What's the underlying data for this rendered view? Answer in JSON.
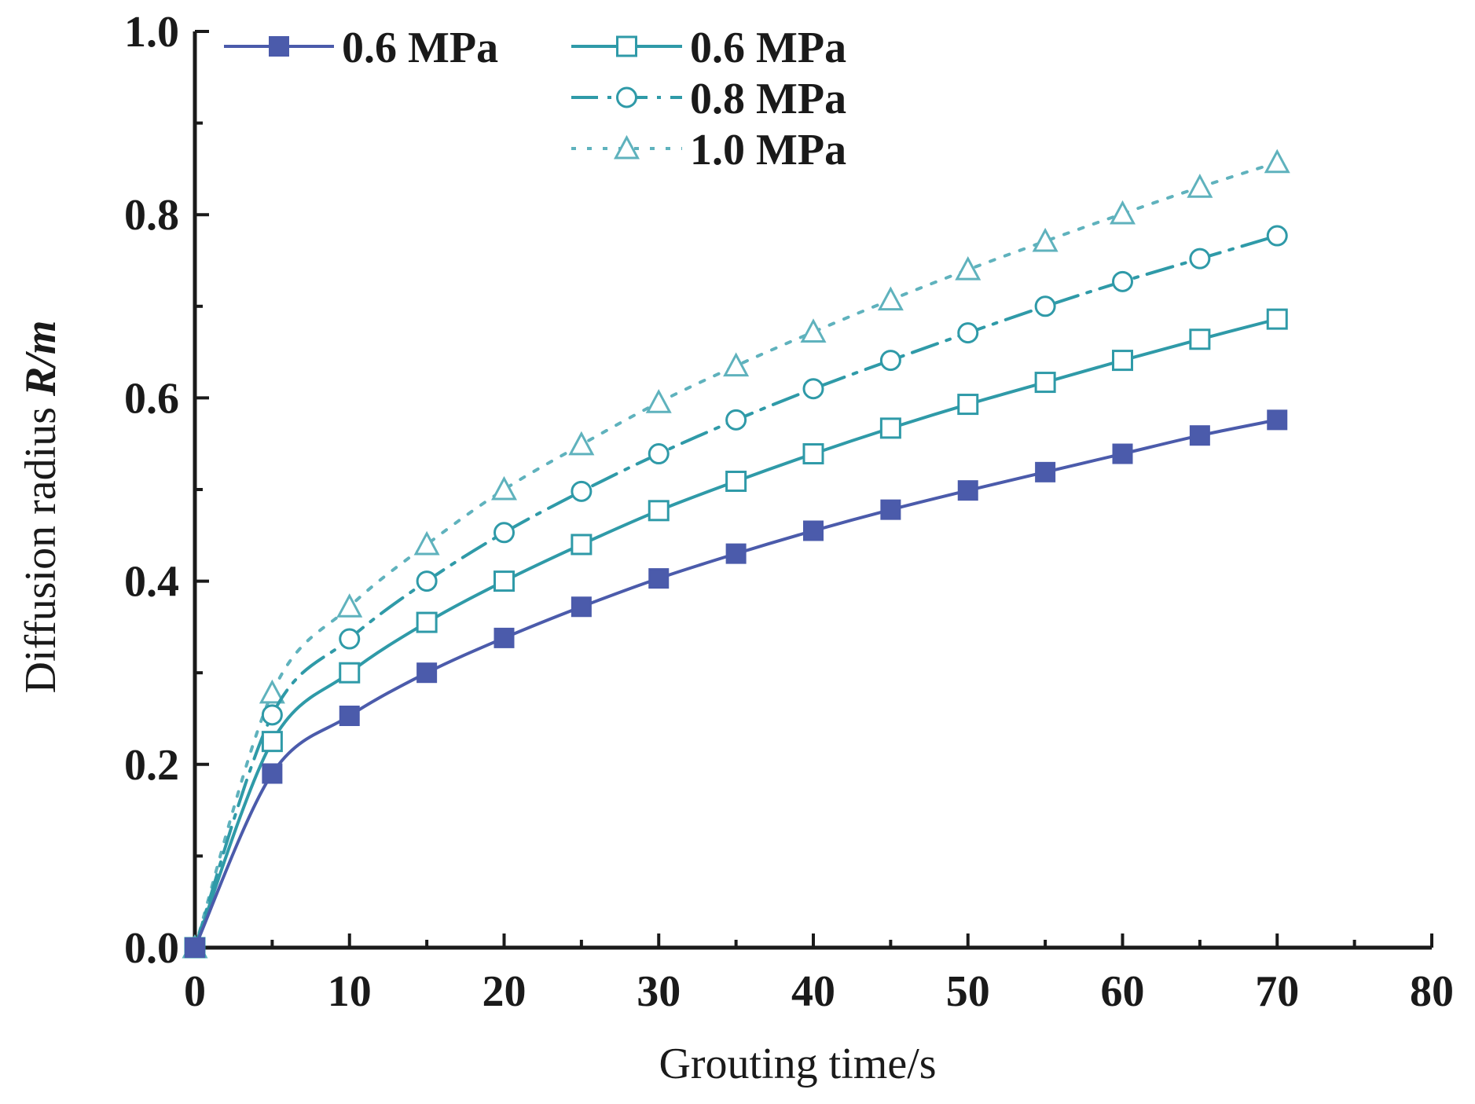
{
  "chart_data": {
    "type": "line",
    "title": "",
    "xlabel": "Grouting time/s",
    "ylabel_prefix": "Diffusion radius ",
    "ylabel_italic": "R/m",
    "xlim": [
      0,
      80
    ],
    "ylim": [
      0,
      1.0
    ],
    "x_ticks": [
      0,
      10,
      20,
      30,
      40,
      50,
      60,
      70,
      80
    ],
    "x_tick_labels": [
      "0",
      "10",
      "20",
      "30",
      "40",
      "50",
      "60",
      "70",
      "80"
    ],
    "y_ticks": [
      0,
      0.2,
      0.4,
      0.6,
      0.8,
      1.0
    ],
    "y_tick_labels": [
      "0.0",
      "0.2",
      "0.4",
      "0.6",
      "0.8",
      "1.0"
    ],
    "grid": false,
    "legend_position": "top-left",
    "colors": {
      "dark_blue": "#4b5bab",
      "teal": "#2f9aa8",
      "light_teal": "#5fb2bd",
      "axis": "#1a1a1a"
    },
    "x": [
      0,
      5,
      10,
      15,
      20,
      25,
      30,
      35,
      40,
      45,
      50,
      55,
      60,
      65,
      70
    ],
    "series": [
      {
        "name": "0.6 MPa",
        "marker": "filled-square",
        "line": "solid",
        "color": "#4b5bab",
        "values": [
          0.0,
          0.19,
          0.253,
          0.3,
          0.338,
          0.372,
          0.403,
          0.43,
          0.455,
          0.478,
          0.499,
          0.519,
          0.539,
          0.559,
          0.576
        ]
      },
      {
        "name": "0.6 MPa",
        "marker": "open-square",
        "line": "solid",
        "color": "#2f9aa8",
        "values": [
          0.0,
          0.225,
          0.3,
          0.355,
          0.4,
          0.44,
          0.477,
          0.509,
          0.539,
          0.567,
          0.593,
          0.617,
          0.641,
          0.664,
          0.686
        ]
      },
      {
        "name": "0.8 MPa",
        "marker": "open-circle",
        "line": "dash-dot",
        "color": "#2f9aa8",
        "values": [
          0.0,
          0.254,
          0.337,
          0.4,
          0.453,
          0.498,
          0.539,
          0.576,
          0.61,
          0.641,
          0.671,
          0.7,
          0.727,
          0.752,
          0.777
        ]
      },
      {
        "name": "1.0 MPa",
        "marker": "open-triangle",
        "line": "dotted",
        "color": "#5fb2bd",
        "values": [
          0.0,
          0.278,
          0.372,
          0.44,
          0.5,
          0.549,
          0.595,
          0.635,
          0.672,
          0.707,
          0.74,
          0.771,
          0.801,
          0.83,
          0.857
        ]
      }
    ]
  }
}
